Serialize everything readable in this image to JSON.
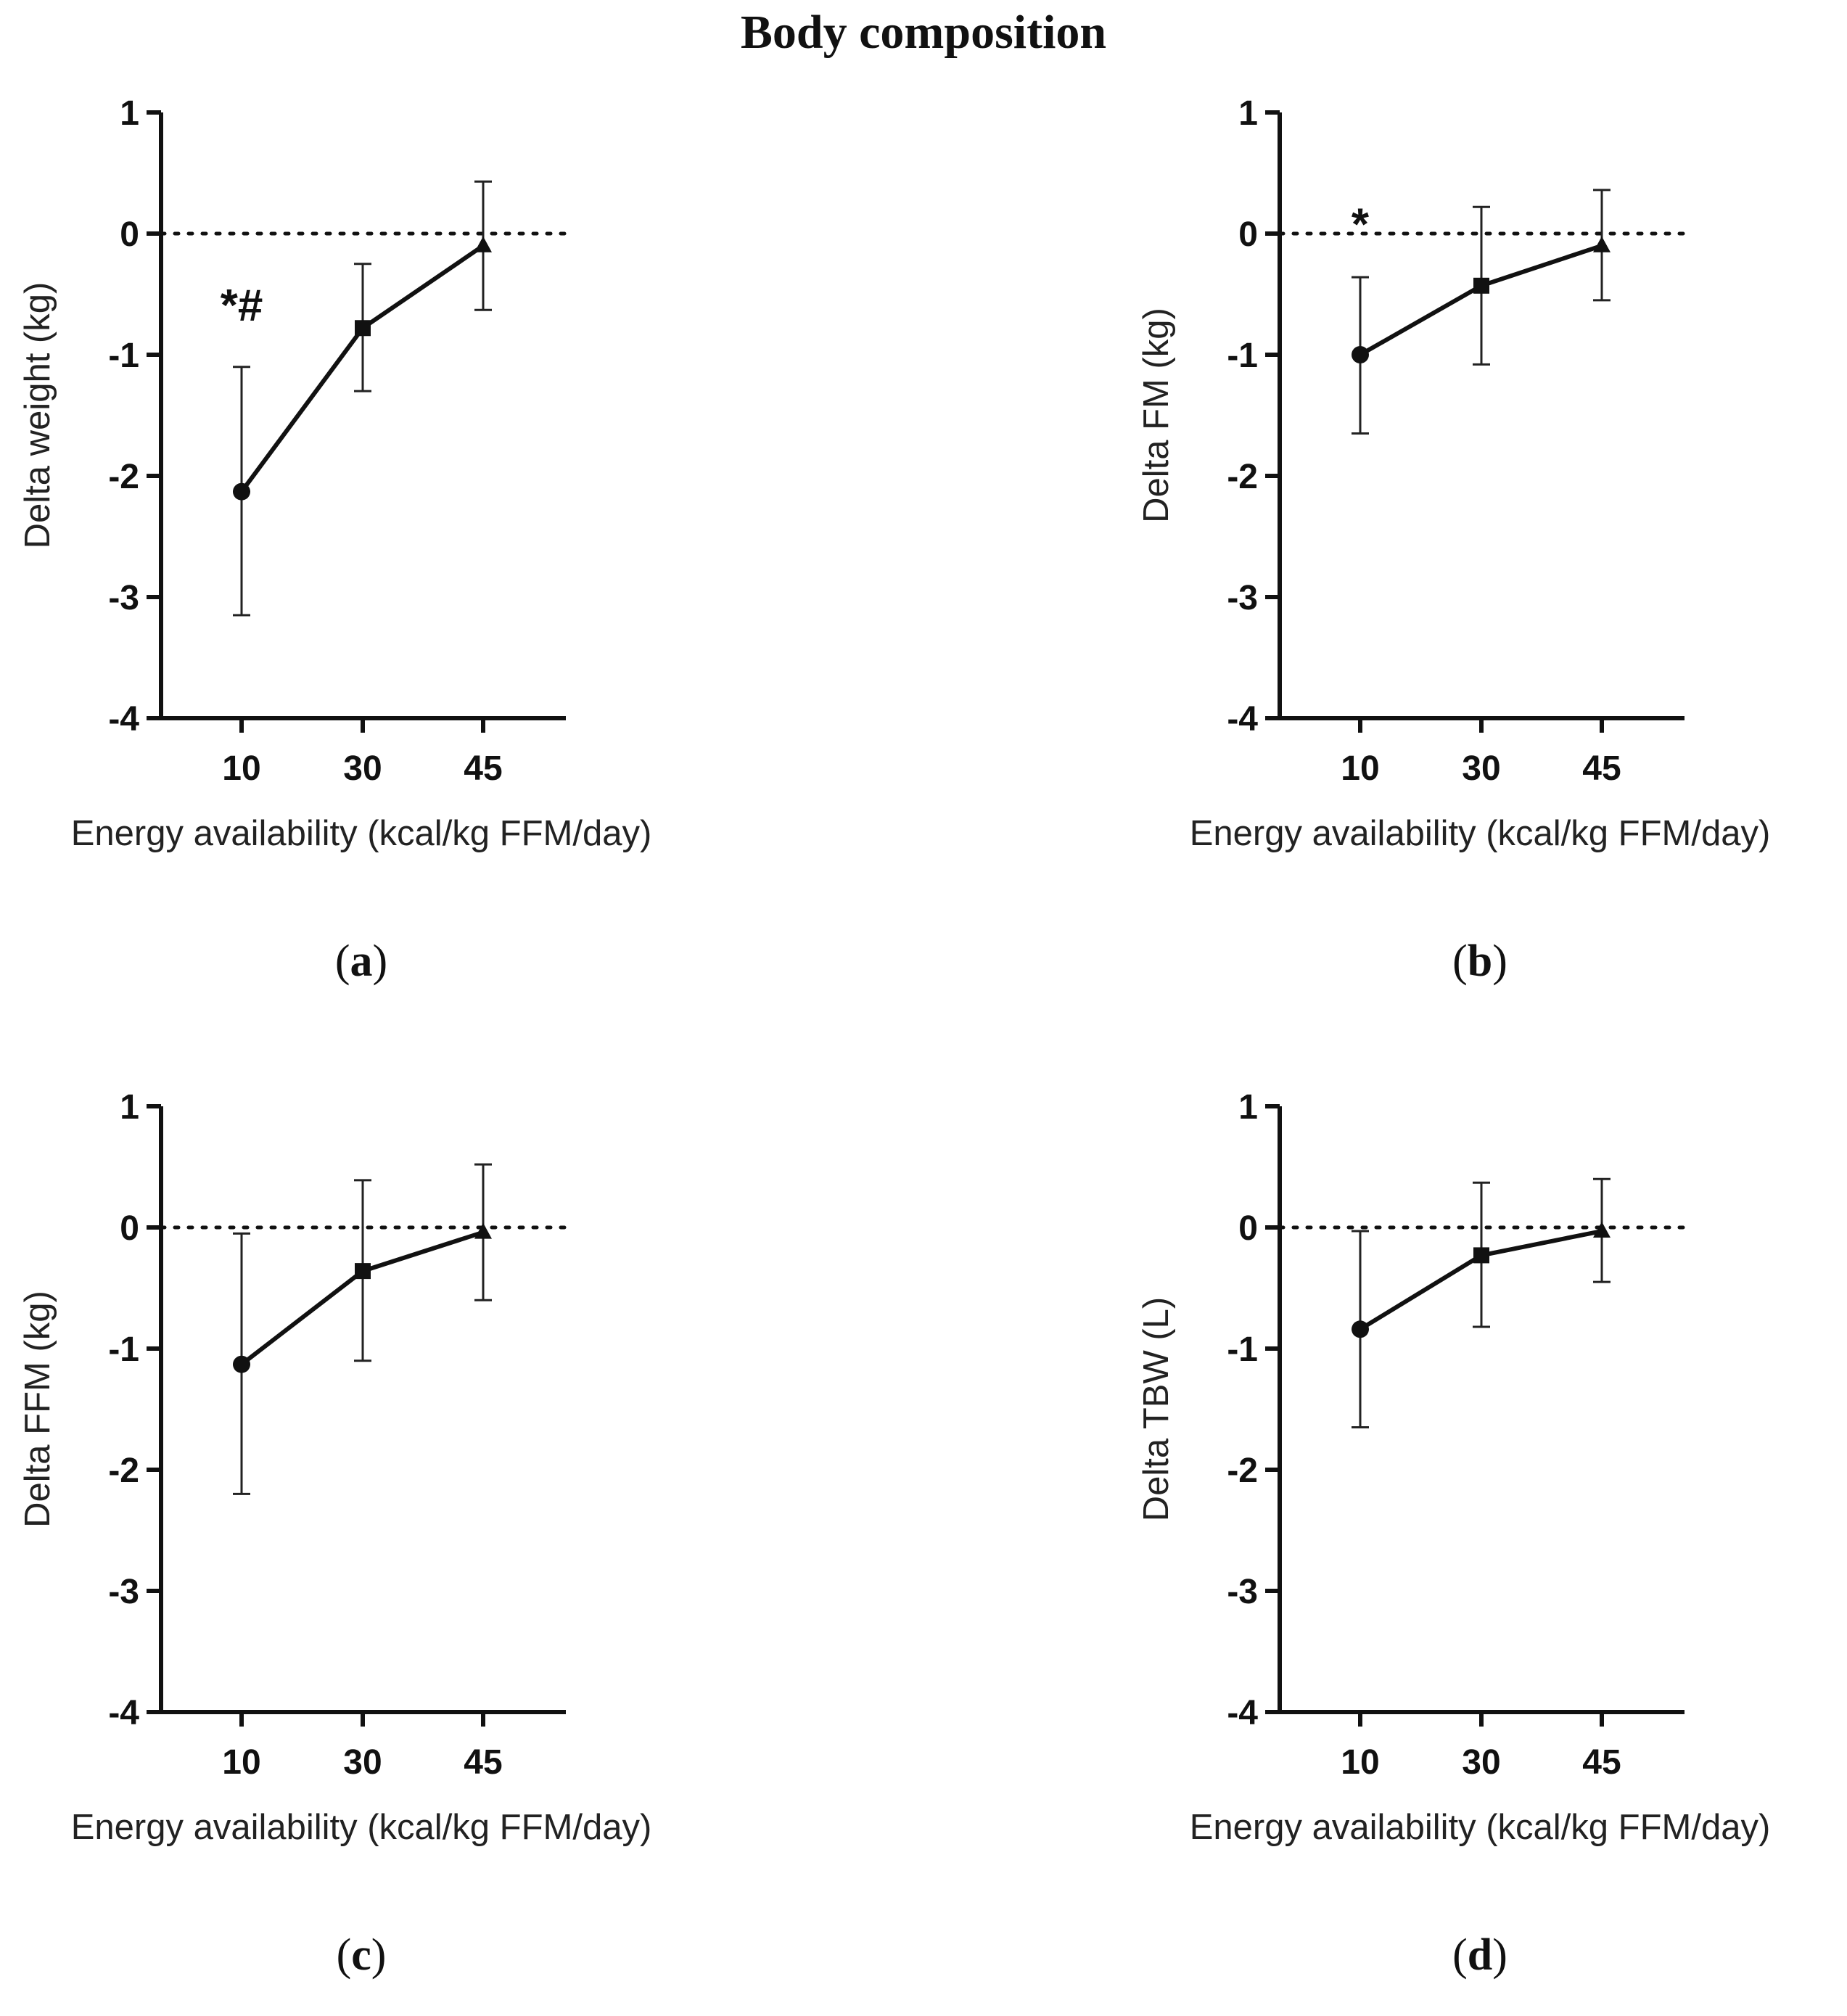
{
  "figure_title": "Body composition",
  "chart_data": [
    {
      "panel": "a",
      "caption_open": "(",
      "caption_letter": "a",
      "caption_close": ")",
      "type": "line",
      "xlabel": "Energy availability (kcal/kg FFM/day)",
      "ylabel": "Delta weight (kg)",
      "categories": [
        "10",
        "30",
        "45"
      ],
      "values": [
        -2.13,
        -0.78,
        -0.1
      ],
      "error_upper": [
        -1.1,
        -0.25,
        0.43
      ],
      "error_lower": [
        -3.15,
        -1.3,
        -0.63
      ],
      "markers": [
        "circle",
        "square",
        "triangle"
      ],
      "annotations": [
        {
          "text": "*#",
          "category": "10",
          "y": -0.72
        }
      ],
      "ylim": [
        -4,
        1
      ],
      "yticks": [
        "1",
        "0",
        "-1",
        "-2",
        "-3",
        "-4"
      ],
      "reference_line": 0
    },
    {
      "panel": "b",
      "caption_open": "(",
      "caption_letter": "b",
      "caption_close": ")",
      "type": "line",
      "xlabel": "Energy availability (kcal/kg FFM/day)",
      "ylabel": "Delta FM (kg)",
      "categories": [
        "10",
        "30",
        "45"
      ],
      "values": [
        -1.0,
        -0.43,
        -0.1
      ],
      "error_upper": [
        -0.36,
        0.22,
        0.36
      ],
      "error_lower": [
        -1.65,
        -1.08,
        -0.55
      ],
      "markers": [
        "circle",
        "square",
        "triangle"
      ],
      "annotations": [
        {
          "text": "*",
          "category": "10",
          "y": -0.05
        }
      ],
      "ylim": [
        -4,
        1
      ],
      "yticks": [
        "1",
        "0",
        "-1",
        "-2",
        "-3",
        "-4"
      ],
      "reference_line": 0
    },
    {
      "panel": "c",
      "caption_open": "(",
      "caption_letter": "c",
      "caption_close": ")",
      "type": "line",
      "xlabel": "Energy availability (kcal/kg FFM/day)",
      "ylabel": "Delta FFM (kg)",
      "categories": [
        "10",
        "30",
        "45"
      ],
      "values": [
        -1.13,
        -0.36,
        -0.04
      ],
      "error_upper": [
        -0.05,
        0.39,
        0.52
      ],
      "error_lower": [
        -2.2,
        -1.1,
        -0.6
      ],
      "markers": [
        "circle",
        "square",
        "triangle"
      ],
      "annotations": [],
      "ylim": [
        -4,
        1
      ],
      "yticks": [
        "1",
        "0",
        "-1",
        "-2",
        "-3",
        "-4"
      ],
      "reference_line": 0
    },
    {
      "panel": "d",
      "caption_open": "(",
      "caption_letter": "d",
      "caption_close": ")",
      "type": "line",
      "xlabel": "Energy availability (kcal/kg FFM/day)",
      "ylabel": "Delta TBW (L)",
      "categories": [
        "10",
        "30",
        "45"
      ],
      "values": [
        -0.84,
        -0.23,
        -0.03
      ],
      "error_upper": [
        -0.03,
        0.37,
        0.4
      ],
      "error_lower": [
        -1.65,
        -0.82,
        -0.45
      ],
      "markers": [
        "circle",
        "square",
        "triangle"
      ],
      "annotations": [],
      "ylim": [
        -4,
        1
      ],
      "yticks": [
        "1",
        "0",
        "-1",
        "-2",
        "-3",
        "-4"
      ],
      "reference_line": 0
    }
  ]
}
